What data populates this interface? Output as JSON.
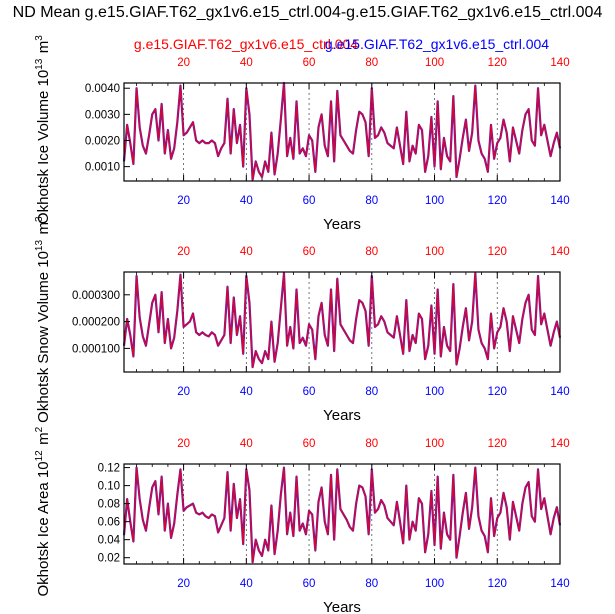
{
  "title": "ND Mean g.e15.GIAF.T62_gx1v6.e15_ctrl.004-g.e15.GIAF.T62_gx1v6.e15_ctrl.004",
  "colors": {
    "case1": "#ff0000",
    "case2": "#0000ff",
    "grid": "#555555"
  },
  "chart_data": [
    {
      "type": "line",
      "ylabel": "Okhotsk Ice Volume 10^13 m^3",
      "xlabel": "Years",
      "xlim": [
        1,
        140
      ],
      "ylim": [
        0.00045,
        0.0042
      ],
      "yticks": [
        "0.0010",
        "0.0020",
        "0.0030",
        "0.0040"
      ],
      "ytick_values": [
        0.001,
        0.002,
        0.003,
        0.004
      ],
      "xticks": [
        20,
        40,
        60,
        80,
        100,
        120,
        140
      ],
      "top_xticks": [
        20,
        40,
        60,
        80,
        100,
        120,
        140
      ],
      "legend": [
        "g.e15.GIAF.T62_gx1v6.e15_ctrl.004",
        "g.e15.GIAF.T62_gx1v6.e15_ctrl.004"
      ],
      "series": [
        {
          "name": "g.e15.GIAF.T62_gx1v6.e15_ctrl.004",
          "color": "#ff0000",
          "values": [
            0.0012,
            0.0026,
            0.0019,
            0.0011,
            0.004,
            0.0025,
            0.0018,
            0.0015,
            0.0022,
            0.003,
            0.0032,
            0.002,
            0.0034,
            0.0015,
            0.0024,
            0.0013,
            0.0017,
            0.0027,
            0.0041,
            0.0022,
            0.0023,
            0.0025,
            0.0027,
            0.002,
            0.0019,
            0.002,
            0.0019,
            0.0019,
            0.002,
            0.0019,
            0.0014,
            0.0017,
            0.0019,
            0.0036,
            0.0015,
            0.0032,
            0.0019,
            0.0026,
            0.001,
            0.004,
            0.003,
            0.0005,
            0.0012,
            0.0008,
            0.0006,
            0.0012,
            0.0008,
            0.0023,
            0.0007,
            0.0015,
            0.0028,
            0.0042,
            0.0014,
            0.0021,
            0.0013,
            0.0035,
            0.0015,
            0.0017,
            0.0014,
            0.0022,
            0.002,
            0.0008,
            0.0025,
            0.003,
            0.0018,
            0.0014,
            0.0035,
            0.0012,
            0.0039,
            0.0022,
            0.002,
            0.0018,
            0.0016,
            0.0015,
            0.0024,
            0.0031,
            0.003,
            0.0027,
            0.0014,
            0.004,
            0.0021,
            0.0022,
            0.0025,
            0.0023,
            0.0019,
            0.0018,
            0.0017,
            0.0025,
            0.0018,
            0.0011,
            0.0031,
            0.0012,
            0.0018,
            0.0015,
            0.0026,
            0.0024,
            0.0008,
            0.0014,
            0.0029,
            0.001,
            0.0035,
            0.0009,
            0.0021,
            0.0014,
            0.0012,
            0.0037,
            0.0006,
            0.0013,
            0.0021,
            0.0028,
            0.0016,
            0.0023,
            0.0041,
            0.002,
            0.0015,
            0.0013,
            0.0008,
            0.0026,
            0.0013,
            0.0019,
            0.0021,
            0.0028,
            0.0023,
            0.0012,
            0.0025,
            0.002,
            0.0015,
            0.0024,
            0.003,
            0.0032,
            0.002,
            0.0018,
            0.004,
            0.0022,
            0.0026,
            0.002,
            0.0014,
            0.0019,
            0.0023,
            0.0017
          ]
        },
        {
          "name": "g.e15.GIAF.T62_gx1v6.e15_ctrl.004",
          "color": "#0000ff",
          "values": [
            0.0012,
            0.0026,
            0.0019,
            0.0011,
            0.004,
            0.0025,
            0.0018,
            0.0015,
            0.0022,
            0.003,
            0.0032,
            0.002,
            0.0034,
            0.0015,
            0.0024,
            0.0013,
            0.0017,
            0.0027,
            0.0041,
            0.0022,
            0.0023,
            0.0025,
            0.0027,
            0.002,
            0.0019,
            0.002,
            0.0019,
            0.0019,
            0.002,
            0.0019,
            0.0014,
            0.0017,
            0.0019,
            0.0036,
            0.0015,
            0.0032,
            0.0019,
            0.0026,
            0.001,
            0.004,
            0.003,
            0.0005,
            0.0012,
            0.0008,
            0.0006,
            0.0012,
            0.0008,
            0.0023,
            0.0007,
            0.0015,
            0.0028,
            0.0042,
            0.0014,
            0.0021,
            0.0013,
            0.0035,
            0.0015,
            0.0017,
            0.0014,
            0.0022,
            0.002,
            0.0008,
            0.0025,
            0.003,
            0.0018,
            0.0014,
            0.0035,
            0.0012,
            0.0039,
            0.0022,
            0.002,
            0.0018,
            0.0016,
            0.0015,
            0.0024,
            0.0031,
            0.003,
            0.0027,
            0.0014,
            0.004,
            0.0021,
            0.0022,
            0.0025,
            0.0023,
            0.0019,
            0.0018,
            0.0017,
            0.0025,
            0.0018,
            0.0011,
            0.0031,
            0.0012,
            0.0018,
            0.0015,
            0.0026,
            0.0024,
            0.0008,
            0.0014,
            0.0029,
            0.001,
            0.0035,
            0.0009,
            0.0021,
            0.0014,
            0.0012,
            0.0037,
            0.0006,
            0.0013,
            0.0021,
            0.0028,
            0.0016,
            0.0023,
            0.0041,
            0.002,
            0.0015,
            0.0013,
            0.0008,
            0.0026,
            0.0013,
            0.0019,
            0.0021,
            0.0028,
            0.0023,
            0.0012,
            0.0025,
            0.002,
            0.0015,
            0.0024,
            0.003,
            0.0032,
            0.002,
            0.0018,
            0.004,
            0.0022,
            0.0026,
            0.002,
            0.0014,
            0.0019,
            0.0023,
            0.0017
          ]
        }
      ]
    },
    {
      "type": "line",
      "ylabel": "Okhotsk Snow Volume 10^13 m^3",
      "xlabel": "Years",
      "xlim": [
        1,
        140
      ],
      "ylim": [
        1.2e-05,
        0.000385
      ],
      "yticks": [
        "0.000100",
        "0.000200",
        "0.000300"
      ],
      "ytick_values": [
        0.0001,
        0.0002,
        0.0003
      ],
      "xticks": [
        20,
        40,
        60,
        80,
        100,
        120,
        140
      ],
      "top_xticks": [
        20,
        40,
        60,
        80,
        100,
        120,
        140
      ],
      "legend": [],
      "series": [
        {
          "name": "g.e15.GIAF.T62_gx1v6.e15_ctrl.004",
          "color": "#ff0000",
          "values": [
            0.00011,
            0.00021,
            0.00015,
            7e-05,
            0.00037,
            0.000215,
            0.000145,
            0.00011,
            0.00019,
            0.00027,
            0.0003,
            0.00016,
            0.00031,
            0.00012,
            0.00021,
            0.0001,
            0.00014,
            0.00024,
            0.000375,
            0.00018,
            0.00019,
            0.0002,
            0.00023,
            0.00016,
            0.00015,
            0.00016,
            0.00015,
            0.000145,
            0.00016,
            0.00015,
            0.00011,
            0.00013,
            0.00015,
            0.00033,
            0.00012,
            0.00029,
            0.00015,
            0.00022,
            8e-05,
            0.00037,
            0.00027,
            3e-05,
            9e-05,
            6e-05,
            4.5e-05,
            9e-05,
            6e-05,
            0.0002,
            5e-05,
            0.00012,
            0.00025,
            0.00038,
            0.00011,
            0.00018,
            0.0001,
            0.00032,
            0.00012,
            0.00014,
            0.00011,
            0.00019,
            0.00017,
            6e-05,
            0.00022,
            0.00027,
            0.00015,
            0.00011,
            0.00032,
            9e-05,
            0.00036,
            0.00019,
            0.00017,
            0.00015,
            0.00013,
            0.00012,
            0.00021,
            0.00028,
            0.00027,
            0.00024,
            0.00011,
            0.00037,
            0.00018,
            0.00019,
            0.00022,
            0.0002,
            0.00016,
            0.00015,
            0.00014,
            0.00022,
            0.00015,
            8e-05,
            0.00028,
            9e-05,
            0.00015,
            0.00012,
            0.00023,
            0.00021,
            6e-05,
            0.00011,
            0.00026,
            8e-05,
            0.00032,
            7e-05,
            0.00018,
            0.00011,
            9e-05,
            0.00034,
            4e-05,
            0.0001,
            0.00018,
            0.00025,
            0.00013,
            0.0002,
            0.00038,
            0.00017,
            0.00012,
            0.0001,
            6e-05,
            0.00023,
            0.0001,
            0.00016,
            0.00018,
            0.00025,
            0.0002,
            9e-05,
            0.00022,
            0.00017,
            0.00012,
            0.00021,
            0.00027,
            0.0003,
            0.00017,
            0.00015,
            0.00037,
            0.00019,
            0.00023,
            0.00017,
            0.00011,
            0.00016,
            0.0002,
            0.00014
          ]
        },
        {
          "name": "g.e15.GIAF.T62_gx1v6.e15_ctrl.004",
          "color": "#0000ff",
          "values": [
            0.00011,
            0.00021,
            0.00015,
            7e-05,
            0.00037,
            0.000215,
            0.000145,
            0.00011,
            0.00019,
            0.00027,
            0.0003,
            0.00016,
            0.00031,
            0.00012,
            0.00021,
            0.0001,
            0.00014,
            0.00024,
            0.000375,
            0.00018,
            0.00019,
            0.0002,
            0.00023,
            0.00016,
            0.00015,
            0.00016,
            0.00015,
            0.000145,
            0.00016,
            0.00015,
            0.00011,
            0.00013,
            0.00015,
            0.00033,
            0.00012,
            0.00029,
            0.00015,
            0.00022,
            8e-05,
            0.00037,
            0.00027,
            3e-05,
            9e-05,
            6e-05,
            4.5e-05,
            9e-05,
            6e-05,
            0.0002,
            5e-05,
            0.00012,
            0.00025,
            0.00038,
            0.00011,
            0.00018,
            0.0001,
            0.00032,
            0.00012,
            0.00014,
            0.00011,
            0.00019,
            0.00017,
            6e-05,
            0.00022,
            0.00027,
            0.00015,
            0.00011,
            0.00032,
            9e-05,
            0.00036,
            0.00019,
            0.00017,
            0.00015,
            0.00013,
            0.00012,
            0.00021,
            0.00028,
            0.00027,
            0.00024,
            0.00011,
            0.00037,
            0.00018,
            0.00019,
            0.00022,
            0.0002,
            0.00016,
            0.00015,
            0.00014,
            0.00022,
            0.00015,
            8e-05,
            0.00028,
            9e-05,
            0.00015,
            0.00012,
            0.00023,
            0.00021,
            6e-05,
            0.00011,
            0.00026,
            8e-05,
            0.00032,
            7e-05,
            0.00018,
            0.00011,
            9e-05,
            0.00034,
            4e-05,
            0.0001,
            0.00018,
            0.00025,
            0.00013,
            0.0002,
            0.00038,
            0.00017,
            0.00012,
            0.0001,
            6e-05,
            0.00023,
            0.0001,
            0.00016,
            0.00018,
            0.00025,
            0.0002,
            9e-05,
            0.00022,
            0.00017,
            0.00012,
            0.00021,
            0.00027,
            0.0003,
            0.00017,
            0.00015,
            0.00037,
            0.00019,
            0.00023,
            0.00017,
            0.00011,
            0.00016,
            0.0002,
            0.00014
          ]
        }
      ]
    },
    {
      "type": "line",
      "ylabel": "Okhotsk Ice Area 10^12 m^2",
      "xlabel": "Years",
      "xlim": [
        1,
        140
      ],
      "ylim": [
        0.013,
        0.124
      ],
      "yticks": [
        "0.02",
        "0.04",
        "0.06",
        "0.08",
        "0.10",
        "0.12"
      ],
      "ytick_values": [
        0.02,
        0.04,
        0.06,
        0.08,
        0.1,
        0.12
      ],
      "xticks": [
        20,
        40,
        60,
        80,
        100,
        120,
        140
      ],
      "top_xticks": [
        20,
        40,
        60,
        80,
        100,
        120,
        140
      ],
      "legend": [],
      "series": [
        {
          "name": "g.e15.GIAF.T62_gx1v6.e15_ctrl.004",
          "color": "#ff0000",
          "values": [
            0.045,
            0.085,
            0.06,
            0.038,
            0.12,
            0.085,
            0.062,
            0.05,
            0.075,
            0.098,
            0.105,
            0.068,
            0.11,
            0.05,
            0.08,
            0.042,
            0.058,
            0.09,
            0.118,
            0.072,
            0.076,
            0.078,
            0.08,
            0.07,
            0.068,
            0.07,
            0.066,
            0.064,
            0.068,
            0.066,
            0.048,
            0.056,
            0.064,
            0.115,
            0.05,
            0.102,
            0.064,
            0.085,
            0.035,
            0.118,
            0.095,
            0.015,
            0.04,
            0.028,
            0.022,
            0.04,
            0.028,
            0.078,
            0.024,
            0.05,
            0.09,
            0.12,
            0.046,
            0.07,
            0.044,
            0.11,
            0.05,
            0.058,
            0.046,
            0.072,
            0.068,
            0.028,
            0.082,
            0.098,
            0.06,
            0.046,
            0.112,
            0.04,
            0.118,
            0.074,
            0.068,
            0.062,
            0.054,
            0.05,
            0.08,
            0.1,
            0.098,
            0.088,
            0.046,
            0.118,
            0.07,
            0.074,
            0.084,
            0.078,
            0.064,
            0.06,
            0.056,
            0.082,
            0.06,
            0.036,
            0.1,
            0.04,
            0.06,
            0.05,
            0.086,
            0.08,
            0.026,
            0.046,
            0.094,
            0.034,
            0.11,
            0.03,
            0.07,
            0.046,
            0.04,
            0.112,
            0.02,
            0.044,
            0.07,
            0.092,
            0.052,
            0.076,
            0.12,
            0.066,
            0.05,
            0.044,
            0.026,
            0.086,
            0.044,
            0.064,
            0.07,
            0.092,
            0.076,
            0.04,
            0.082,
            0.066,
            0.05,
            0.08,
            0.098,
            0.104,
            0.066,
            0.06,
            0.118,
            0.074,
            0.086,
            0.066,
            0.046,
            0.064,
            0.076,
            0.056
          ]
        },
        {
          "name": "g.e15.GIAF.T62_gx1v6.e15_ctrl.004",
          "color": "#0000ff",
          "values": [
            0.045,
            0.085,
            0.06,
            0.038,
            0.12,
            0.085,
            0.062,
            0.05,
            0.075,
            0.098,
            0.105,
            0.068,
            0.11,
            0.05,
            0.08,
            0.042,
            0.058,
            0.09,
            0.118,
            0.072,
            0.076,
            0.078,
            0.08,
            0.07,
            0.068,
            0.07,
            0.066,
            0.064,
            0.068,
            0.066,
            0.048,
            0.056,
            0.064,
            0.115,
            0.05,
            0.102,
            0.064,
            0.085,
            0.035,
            0.118,
            0.095,
            0.015,
            0.04,
            0.028,
            0.022,
            0.04,
            0.028,
            0.078,
            0.024,
            0.05,
            0.09,
            0.12,
            0.046,
            0.07,
            0.044,
            0.11,
            0.05,
            0.058,
            0.046,
            0.072,
            0.068,
            0.028,
            0.082,
            0.098,
            0.06,
            0.046,
            0.112,
            0.04,
            0.118,
            0.074,
            0.068,
            0.062,
            0.054,
            0.05,
            0.08,
            0.1,
            0.098,
            0.088,
            0.046,
            0.118,
            0.07,
            0.074,
            0.084,
            0.078,
            0.064,
            0.06,
            0.056,
            0.082,
            0.06,
            0.036,
            0.1,
            0.04,
            0.06,
            0.05,
            0.086,
            0.08,
            0.026,
            0.046,
            0.094,
            0.034,
            0.11,
            0.03,
            0.07,
            0.046,
            0.04,
            0.112,
            0.02,
            0.044,
            0.07,
            0.092,
            0.052,
            0.076,
            0.12,
            0.066,
            0.05,
            0.044,
            0.026,
            0.086,
            0.044,
            0.064,
            0.07,
            0.092,
            0.076,
            0.04,
            0.082,
            0.066,
            0.05,
            0.08,
            0.098,
            0.104,
            0.066,
            0.06,
            0.118,
            0.074,
            0.086,
            0.066,
            0.046,
            0.064,
            0.076,
            0.056
          ]
        }
      ]
    }
  ]
}
